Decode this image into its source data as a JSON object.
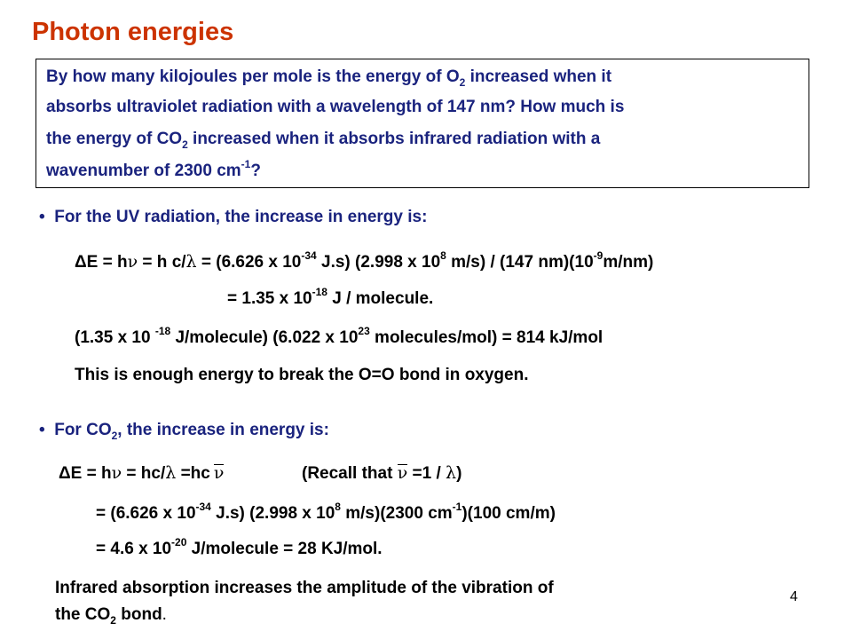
{
  "title": "Photon energies",
  "question": {
    "l1a": "By how many kilojoules per mole is the energy of O",
    "l1sub": "2",
    "l1b": " increased when it",
    "l2": "absorbs ultraviolet radiation with a wavelength of 147 nm? How much is",
    "l3a": "the energy of CO",
    "l3sub": "2",
    "l3b": " increased when it absorbs infrared radiation with a",
    "l4a": "wavenumber of 2300 cm",
    "l4sup": "-1",
    "l4b": "?"
  },
  "uv": {
    "bullet": "For the UV radiation, the increase in energy is:",
    "eq1": {
      "a": "ΔE = h",
      "nu": "ν",
      "b": " = h c/",
      "lambda": "λ",
      "c": " = (6.626 x 10",
      "sup1": "-34",
      "d": " J.s) (2.998 x 10",
      "sup2": "8",
      "e": " m/s) / (147 nm)(10",
      "sup3": "-9",
      "f": "m/nm)"
    },
    "eq2": {
      "a": "= 1.35 x 10",
      "sup": "-18",
      "b": " J / molecule."
    },
    "eq3": {
      "a": "(1.35 x 10 ",
      "sup1": "-18",
      "b": " J/molecule) (6.022 x 10",
      "sup2": "23",
      "c": " molecules/mol) = 814 kJ/mol"
    },
    "note": "This is enough energy to break the O=O bond in oxygen."
  },
  "co2": {
    "bullet_a": "For CO",
    "bullet_sub": "2",
    "bullet_b": ", the increase in energy is:",
    "eq1": {
      "a": "ΔE = h",
      "nu": "ν",
      "b": " = hc/",
      "lambda": "λ",
      "c": " =hc",
      "nubar": "ν",
      "recall_a": "(Recall that ",
      "recall_nubar": "ν",
      "recall_b": " =1 / ",
      "recall_lambda": "λ",
      "recall_c": ")"
    },
    "eq2": {
      "a": "= (6.626 x 10",
      "sup1": "-34",
      "b": " J.s) (2.998 x 10",
      "sup2": "8",
      "c": " m/s)(2300 cm",
      "sup3": "-1",
      "d": ")(100 cm/m)"
    },
    "eq3": {
      "a": "= 4.6 x 10",
      "sup": "-20",
      "b": " J/molecule = 28 KJ/mol."
    },
    "ir1": "Infrared absorption increases the amplitude of the vibration of",
    "ir2a": "the CO",
    "ir2sub": "2",
    "ir2b": " bond",
    "ir2c": "."
  },
  "page_number": "4"
}
